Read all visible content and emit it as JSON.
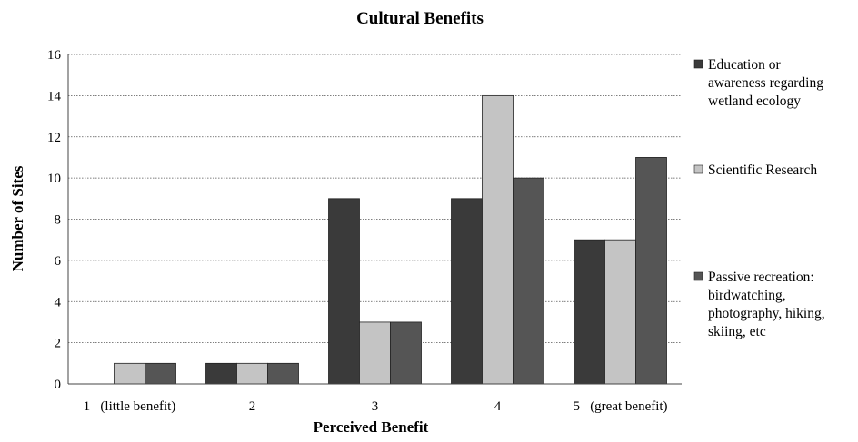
{
  "chart_data": {
    "type": "bar",
    "title": "Cultural Benefits",
    "xlabel": "Perceived Benefit",
    "ylabel": "Number of Sites",
    "categories": [
      "1   (little benefit)",
      "2",
      "3",
      "4",
      "5   (great benefit)"
    ],
    "series": [
      {
        "name": "Education or awareness regarding wetland ecology",
        "legend_lines": [
          "Education or",
          "awareness regarding",
          "wetland ecology"
        ],
        "color": "#3a3a3a",
        "values": [
          0,
          1,
          9,
          9,
          7
        ]
      },
      {
        "name": "Scientific Research",
        "legend_lines": [
          "Scientific Research"
        ],
        "color": "#c4c4c4",
        "values": [
          1,
          1,
          3,
          14,
          7
        ]
      },
      {
        "name": "Passive recreation: birdwatching, photography, hiking, skiing, etc",
        "legend_lines": [
          "Passive recreation:",
          "birdwatching,",
          "photography, hiking,",
          "skiing, etc"
        ],
        "color": "#555555",
        "values": [
          1,
          1,
          3,
          10,
          11
        ]
      }
    ],
    "ylim": [
      0,
      16
    ],
    "yticks": [
      0,
      2,
      4,
      6,
      8,
      10,
      12,
      14,
      16
    ],
    "grid": true,
    "legend_position": "right"
  }
}
